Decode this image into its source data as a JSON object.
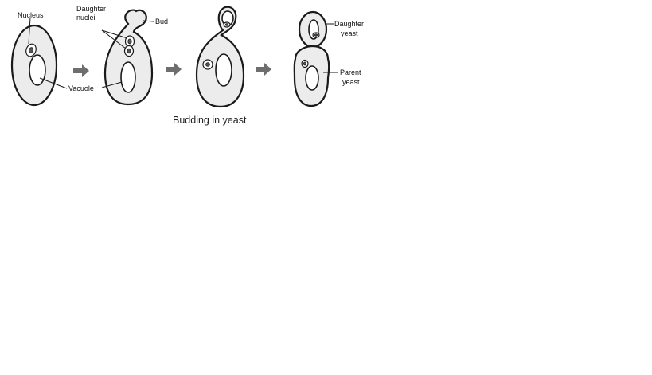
{
  "labels": {
    "nucleus": "Nucleus",
    "daughter_nuclei_line1": "Daughter",
    "daughter_nuclei_line2": "nuclei",
    "bud": "Bud",
    "vacuole": "Vacuole",
    "daughter_yeast_line1": "Daughter",
    "daughter_yeast_line2": "yeast",
    "parent_yeast_line1": "Parent",
    "parent_yeast_line2": "yeast"
  },
  "caption": "Budding in yeast",
  "colors": {
    "cytoplasm": "#ececec",
    "outline": "#1a1a1a",
    "arrow": "#6e6e6e"
  }
}
